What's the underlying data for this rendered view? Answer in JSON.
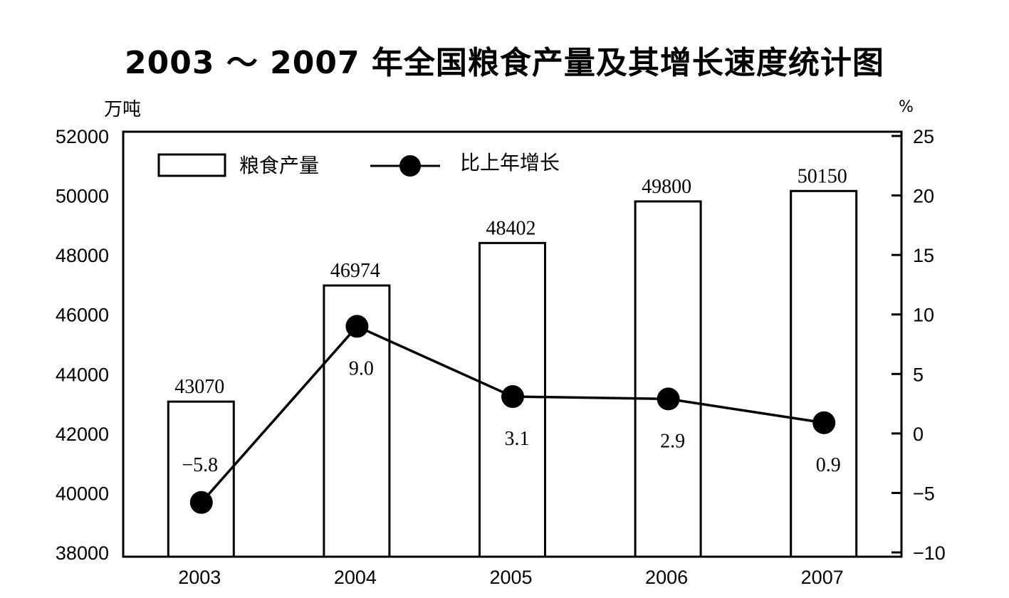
{
  "chart_data": {
    "type": "bar",
    "title": "2003 ～ 2007 年全国粮食产量及其增长速度统计图",
    "categories": [
      "2003",
      "2004",
      "2005",
      "2006",
      "2007"
    ],
    "ylabel_left": "万吨",
    "ylabel_right": "%",
    "ylim_left": [
      38000,
      52000
    ],
    "yticks_left": [
      "38000",
      "40000",
      "42000",
      "44000",
      "46000",
      "48000",
      "50000",
      "52000"
    ],
    "ylim_right": [
      -10,
      25
    ],
    "yticks_right": [
      "−10",
      "−5",
      "0",
      "5",
      "10",
      "15",
      "20",
      "25"
    ],
    "legend_position": "top-left",
    "series": [
      {
        "name": "粮食产量",
        "kind": "bar",
        "axis": "left",
        "values": [
          43070,
          46974,
          48402,
          49800,
          50150
        ],
        "labels": [
          "43070",
          "46974",
          "48402",
          "49800",
          "50150"
        ]
      },
      {
        "name": "比上年增长",
        "kind": "line",
        "axis": "right",
        "values": [
          -5.8,
          9.0,
          3.1,
          2.9,
          0.9
        ],
        "labels": [
          "−5.8",
          "9.0",
          "3.1",
          "2.9",
          "0.9"
        ]
      }
    ]
  }
}
